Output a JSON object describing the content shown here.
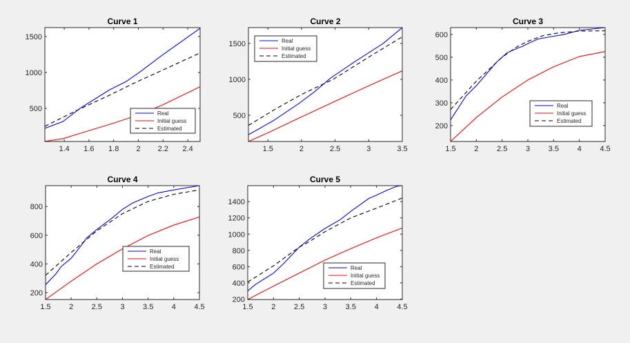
{
  "figure": {
    "background": "#f0f0f0",
    "axes_background": "#ffffff",
    "axis_color": "#262626"
  },
  "legend_labels": [
    "Real",
    "Initial guess",
    "Estimated"
  ],
  "series_styles": {
    "Real": {
      "color": "#0000ff",
      "dash": "solid"
    },
    "Initial guess": {
      "color": "#ff0000",
      "dash": "solid"
    },
    "Estimated": {
      "color": "#000000",
      "dash": "dashed"
    }
  },
  "chart_data": [
    {
      "type": "line",
      "title": "Curve 1",
      "xlabel": "",
      "ylabel": "",
      "xlim": [
        1.243,
        2.5
      ],
      "ylim": [
        38,
        1625
      ],
      "xticks": [
        1.4,
        1.6,
        1.8,
        2,
        2.2,
        2.4
      ],
      "xtick_labels": [
        "1.4",
        "1.6",
        "1.8",
        "2",
        "2.2",
        "2.4"
      ],
      "yticks": [
        500,
        1000,
        1500
      ],
      "ytick_labels": [
        "500",
        "1000",
        "1500"
      ],
      "legend_location": "bottom-right",
      "series": [
        {
          "name": "Real",
          "x": [
            1.243,
            1.39,
            1.53,
            1.77,
            1.9,
            2.02,
            2.18,
            2.5
          ],
          "y": [
            221,
            317,
            503,
            760,
            872,
            1016,
            1224,
            1615
          ]
        },
        {
          "name": "Initial guess",
          "x": [
            1.243,
            1.39,
            1.59,
            1.79,
            2.0,
            2.2,
            2.5
          ],
          "y": [
            40,
            77,
            183,
            288,
            407,
            551,
            801
          ]
        },
        {
          "name": "Estimated",
          "x": [
            1.243,
            1.5,
            1.77,
            2.0,
            2.25,
            2.5
          ],
          "y": [
            250,
            470,
            686,
            880,
            1075,
            1272
          ]
        }
      ]
    },
    {
      "type": "line",
      "title": "Curve 2",
      "xlabel": "",
      "ylabel": "",
      "xlim": [
        1.21,
        3.5
      ],
      "ylim": [
        135,
        1721
      ],
      "xticks": [
        1.5,
        2,
        2.5,
        3,
        3.5
      ],
      "xtick_labels": [
        "1.5",
        "2",
        "2.5",
        "3",
        "3.5"
      ],
      "yticks": [
        500,
        1000,
        1500
      ],
      "ytick_labels": [
        "500",
        "1000",
        "1500"
      ],
      "legend_location": "top-left",
      "series": [
        {
          "name": "Real",
          "x": [
            1.21,
            1.58,
            1.96,
            2.19,
            2.43,
            2.81,
            3.21,
            3.5
          ],
          "y": [
            228,
            424,
            663,
            824,
            1016,
            1257,
            1497,
            1721
          ]
        },
        {
          "name": "Initial guess",
          "x": [
            1.21,
            1.5,
            1.96,
            2.5,
            3.0,
            3.5
          ],
          "y": [
            135,
            255,
            459,
            695,
            910,
            1119
          ]
        },
        {
          "name": "Estimated",
          "x": [
            1.21,
            1.6,
            2.0,
            2.47,
            3.0,
            3.5
          ],
          "y": [
            359,
            580,
            790,
            1000,
            1310,
            1593
          ]
        }
      ]
    },
    {
      "type": "line",
      "title": "Curve 3",
      "xlabel": "",
      "ylabel": "",
      "xlim": [
        1.5,
        4.5
      ],
      "ylim": [
        130,
        630
      ],
      "xticks": [
        1.5,
        2,
        2.5,
        3,
        3.5,
        4,
        4.5
      ],
      "xtick_labels": [
        "1.5",
        "2",
        "2.5",
        "3",
        "3.5",
        "4",
        "4.5"
      ],
      "yticks": [
        200,
        300,
        400,
        500,
        600
      ],
      "ytick_labels": [
        "200",
        "300",
        "400",
        "500",
        "600"
      ],
      "legend_location": "bottom-right",
      "series": [
        {
          "name": "Real",
          "x": [
            1.5,
            1.8,
            2.0,
            2.4,
            2.6,
            2.8,
            2.9,
            3.0,
            3.2,
            3.5,
            3.7,
            4.0,
            4.5
          ],
          "y": [
            225,
            330,
            375,
            480,
            520,
            540,
            548,
            560,
            580,
            592,
            600,
            618,
            630
          ]
        },
        {
          "name": "Initial guess",
          "x": [
            1.5,
            2.0,
            2.5,
            3.0,
            3.5,
            4.0,
            4.5
          ],
          "y": [
            130,
            235,
            325,
            400,
            458,
            503,
            525
          ]
        },
        {
          "name": "Estimated",
          "x": [
            1.5,
            2.0,
            2.5,
            2.8,
            3.0,
            3.3,
            3.6,
            4.0,
            4.5
          ],
          "y": [
            270,
            395,
            500,
            548,
            570,
            595,
            607,
            615,
            616
          ]
        }
      ]
    },
    {
      "type": "line",
      "title": "Curve 4",
      "xlabel": "",
      "ylabel": "",
      "xlim": [
        1.5,
        4.5
      ],
      "ylim": [
        152,
        945
      ],
      "xticks": [
        1.5,
        2,
        2.5,
        3,
        3.5,
        4,
        4.5
      ],
      "xtick_labels": [
        "1.5",
        "2",
        "2.5",
        "3",
        "3.5",
        "4",
        "4.5"
      ],
      "yticks": [
        200,
        400,
        600,
        800
      ],
      "ytick_labels": [
        "200",
        "400",
        "600",
        "800"
      ],
      "legend_location": "center-right",
      "series": [
        {
          "name": "Real",
          "x": [
            1.5,
            1.7,
            1.8,
            2.0,
            2.2,
            2.3,
            2.5,
            2.8,
            3.0,
            3.2,
            3.5,
            3.7,
            4.0,
            4.5
          ],
          "y": [
            255,
            330,
            380,
            440,
            530,
            580,
            640,
            720,
            780,
            825,
            870,
            895,
            915,
            945
          ]
        },
        {
          "name": "Initial guess",
          "x": [
            1.5,
            2.0,
            2.5,
            3.0,
            3.5,
            4.0,
            4.5
          ],
          "y": [
            152,
            280,
            400,
            505,
            598,
            670,
            727
          ]
        },
        {
          "name": "Estimated",
          "x": [
            1.5,
            2.0,
            2.3,
            2.5,
            3.0,
            3.5,
            4.0,
            4.5
          ],
          "y": [
            320,
            480,
            570,
            630,
            750,
            835,
            885,
            915
          ]
        }
      ]
    },
    {
      "type": "line",
      "title": "Curve 5",
      "xlabel": "",
      "ylabel": "",
      "xlim": [
        1.5,
        4.5
      ],
      "ylim": [
        195,
        1597
      ],
      "xticks": [
        1.5,
        2,
        2.5,
        3,
        3.5,
        4,
        4.5
      ],
      "xtick_labels": [
        "1.5",
        "2",
        "2.5",
        "3",
        "3.5",
        "4",
        "4.5"
      ],
      "yticks": [
        200,
        400,
        600,
        800,
        1000,
        1200,
        1400
      ],
      "ytick_labels": [
        "200",
        "400",
        "600",
        "800",
        "1000",
        "1200",
        "1400"
      ],
      "legend_location": "bottom-right",
      "series": [
        {
          "name": "Real",
          "x": [
            1.5,
            1.65,
            2.0,
            2.2,
            2.5,
            2.7,
            3.0,
            3.3,
            3.5,
            3.85,
            4.0,
            4.2,
            4.4,
            4.5
          ],
          "y": [
            300,
            380,
            520,
            640,
            840,
            940,
            1070,
            1180,
            1280,
            1440,
            1480,
            1540,
            1590,
            1597
          ]
        },
        {
          "name": "Initial guess",
          "x": [
            1.5,
            2.0,
            2.5,
            3.0,
            3.5,
            4.0,
            4.5
          ],
          "y": [
            195,
            360,
            520,
            680,
            820,
            955,
            1075
          ]
        },
        {
          "name": "Estimated",
          "x": [
            1.5,
            2.0,
            2.5,
            2.7,
            3.0,
            3.5,
            4.0,
            4.5
          ],
          "y": [
            410,
            610,
            840,
            910,
            1030,
            1200,
            1320,
            1445
          ]
        }
      ]
    }
  ]
}
